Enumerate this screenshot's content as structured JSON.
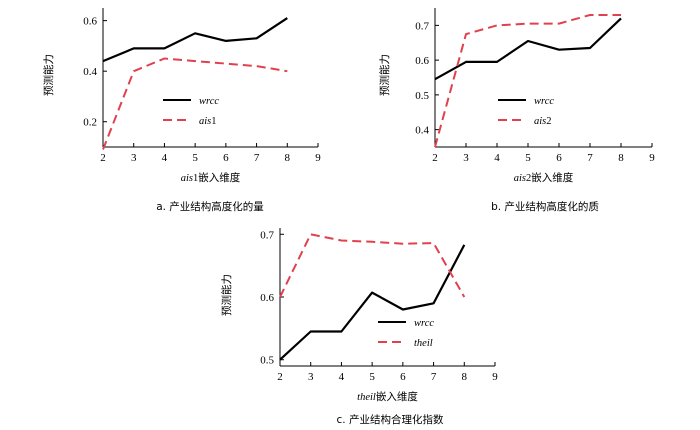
{
  "chart_data": [
    {
      "type": "line",
      "caption": "a.  产业结构高度化的量",
      "xlabel_var": "ais",
      "xlabel_num": "1",
      "xlabel_rest": "嵌入维度",
      "ylabel": "预测能力",
      "x": [
        2,
        3,
        4,
        5,
        6,
        7,
        8
      ],
      "xlim": [
        2,
        9
      ],
      "xticks": [
        "2",
        "3",
        "4",
        "5",
        "6",
        "7",
        "8",
        "9"
      ],
      "ylim": [
        0.1,
        0.65
      ],
      "yticks": [
        0.2,
        0.4,
        0.6
      ],
      "ytick_labels": [
        "0.2",
        "0.4",
        "0.6"
      ],
      "series": [
        {
          "name": "wrcc",
          "name_suffix": "",
          "style": "solid",
          "color": "#000000",
          "values": [
            0.44,
            0.49,
            0.49,
            0.55,
            0.52,
            0.53,
            0.61
          ]
        },
        {
          "name": "ais",
          "name_suffix": "1",
          "style": "dashed",
          "color": "#e0414f",
          "values": [
            0.09,
            0.4,
            0.45,
            0.44,
            0.43,
            0.42,
            0.4
          ]
        }
      ]
    },
    {
      "type": "line",
      "caption": "b.  产业结构高度化的质",
      "xlabel_var": "ais",
      "xlabel_num": "2",
      "xlabel_rest": "嵌入维度",
      "ylabel": "预测能力",
      "x": [
        2,
        3,
        4,
        5,
        6,
        7,
        8
      ],
      "xlim": [
        2,
        9
      ],
      "xticks": [
        "2",
        "3",
        "4",
        "5",
        "6",
        "7",
        "8",
        "9"
      ],
      "ylim": [
        0.35,
        0.75
      ],
      "yticks": [
        0.4,
        0.5,
        0.6,
        0.7
      ],
      "ytick_labels": [
        "0.4",
        "0.5",
        "0.6",
        "0.7"
      ],
      "series": [
        {
          "name": "wrcc",
          "name_suffix": "",
          "style": "solid",
          "color": "#000000",
          "values": [
            0.545,
            0.595,
            0.595,
            0.655,
            0.63,
            0.635,
            0.72
          ]
        },
        {
          "name": "ais",
          "name_suffix": "2",
          "style": "dashed",
          "color": "#e0414f",
          "values": [
            0.35,
            0.675,
            0.7,
            0.705,
            0.705,
            0.73,
            0.73
          ]
        }
      ]
    },
    {
      "type": "line",
      "caption": "c.  产业结构合理化指数",
      "xlabel_var": "theil",
      "xlabel_num": "",
      "xlabel_rest": "嵌入维度",
      "ylabel": "预测能力",
      "x": [
        2,
        3,
        4,
        5,
        6,
        7,
        8
      ],
      "xlim": [
        2,
        9
      ],
      "xticks": [
        "2",
        "3",
        "4",
        "5",
        "6",
        "7",
        "8",
        "9"
      ],
      "ylim": [
        0.49,
        0.71
      ],
      "yticks": [
        0.5,
        0.6,
        0.7
      ],
      "ytick_labels": [
        "0.5",
        "0.6",
        "0.7"
      ],
      "series": [
        {
          "name": "wrcc",
          "name_suffix": "",
          "style": "solid",
          "color": "#000000",
          "values": [
            0.5,
            0.545,
            0.545,
            0.607,
            0.58,
            0.59,
            0.683
          ]
        },
        {
          "name": "theil",
          "name_suffix": "",
          "style": "dashed",
          "color": "#e0414f",
          "values": [
            0.6,
            0.7,
            0.69,
            0.688,
            0.685,
            0.686,
            0.6
          ]
        }
      ]
    }
  ]
}
